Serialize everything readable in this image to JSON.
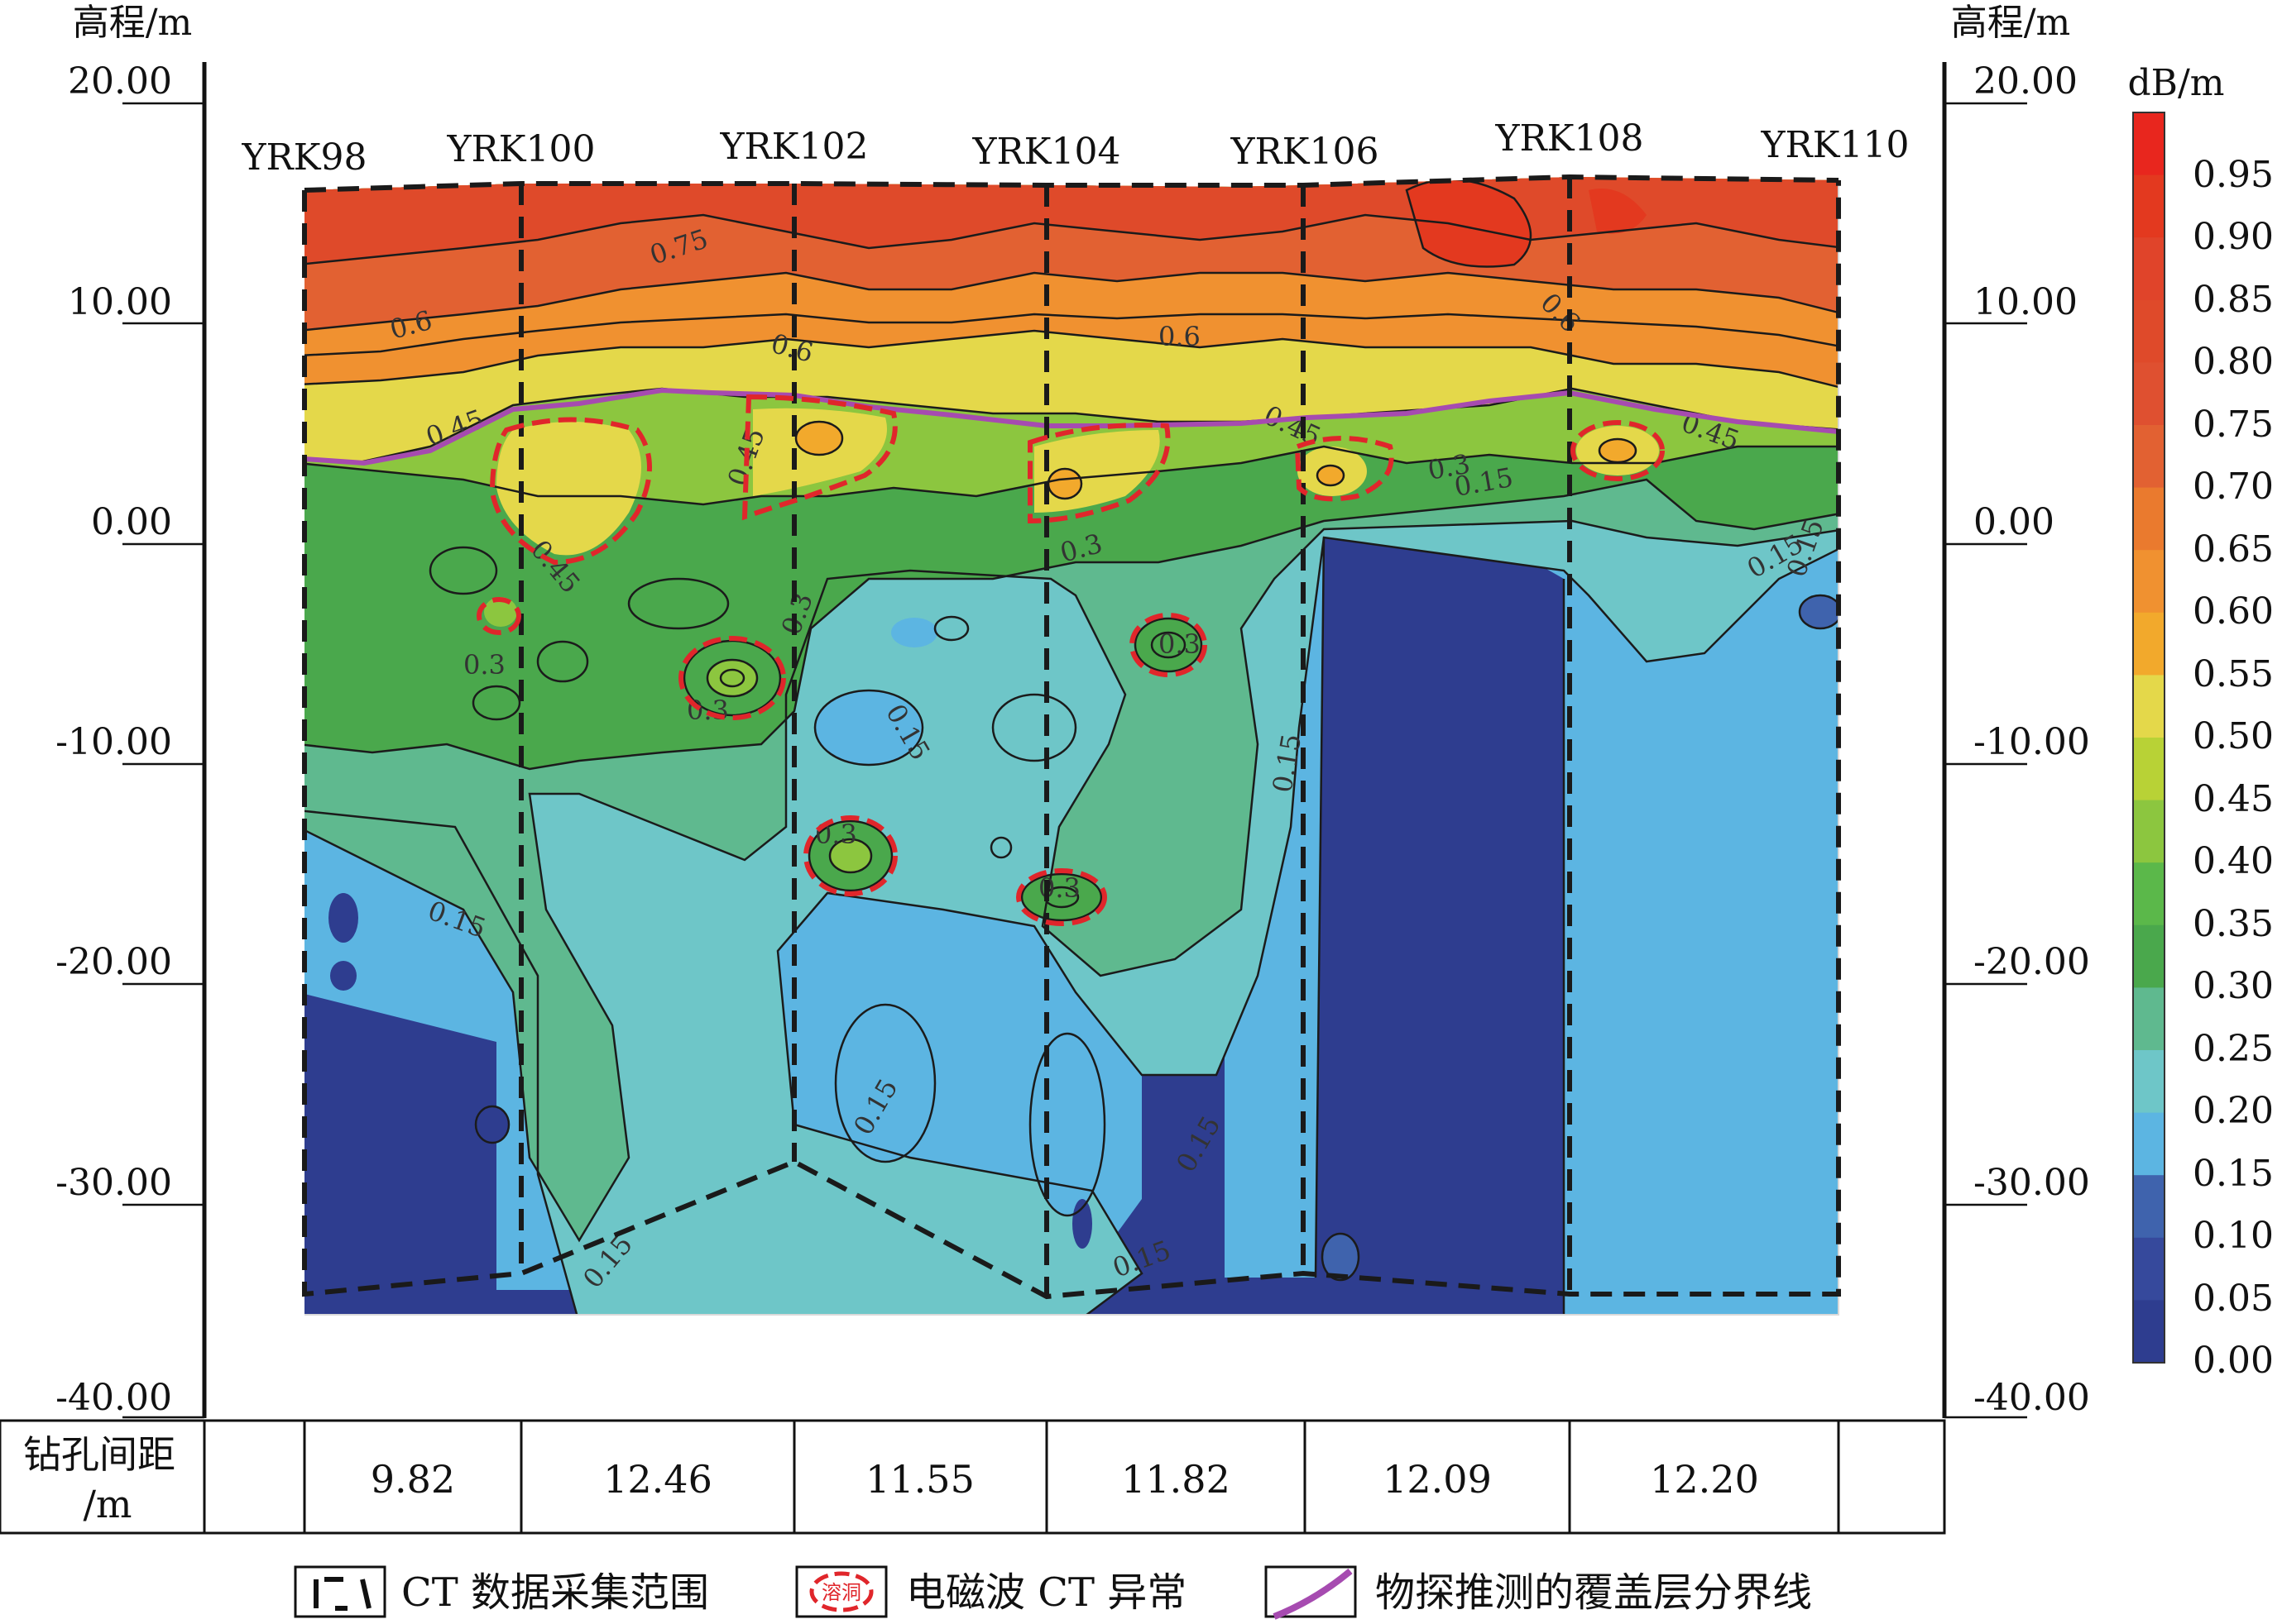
{
  "left_axis": {
    "unit": "高程/m",
    "ticks": [
      "20.00",
      "10.00",
      "0.00",
      "-10.00",
      "-20.00",
      "-30.00",
      "-40.00"
    ]
  },
  "right_axis": {
    "unit": "高程/m",
    "ticks": [
      "20.00",
      "10.00",
      "0.00",
      "-10.00",
      "-20.00",
      "-30.00",
      "-40.00"
    ]
  },
  "boreholes": [
    "YRK98",
    "YRK100",
    "YRK102",
    "YRK104",
    "YRK106",
    "YRK108",
    "YRK110"
  ],
  "spacing_table": {
    "header": "钻孔间距",
    "header_unit": "/m",
    "values": [
      "9.82",
      "12.46",
      "11.55",
      "11.82",
      "12.09",
      "12.20"
    ]
  },
  "colorbar": {
    "unit": "dB/m",
    "labels": [
      "0.95",
      "0.90",
      "0.85",
      "0.80",
      "0.75",
      "0.70",
      "0.65",
      "0.60",
      "0.55",
      "0.50",
      "0.45",
      "0.40",
      "0.35",
      "0.30",
      "0.25",
      "0.20",
      "0.15",
      "0.10",
      "0.05",
      "0.00"
    ],
    "colors": [
      "#e8261e",
      "#e3391f",
      "#e0442a",
      "#df4a2a",
      "#df5030",
      "#e26132",
      "#ea7a2e",
      "#f09130",
      "#f2a92c",
      "#e4d84a",
      "#b8d236",
      "#8cc63f",
      "#5bb84a",
      "#4aa84c",
      "#5fb98f",
      "#6ec6c8",
      "#5cb5e2",
      "#3f63ad",
      "#36499c",
      "#2e3d8f"
    ]
  },
  "contour_labels": [
    "0.75",
    "0.6",
    "0.6",
    "0.6",
    "0.6",
    "0.45",
    "0.45",
    "0.45",
    "0.45",
    "0.45",
    "0.3",
    "0.3",
    "0.3",
    "0.3",
    "0.3",
    "0.3",
    "0.3",
    "0.3",
    "0.15",
    "0.15",
    "0.15",
    "0.15",
    "0.15",
    "0.15",
    "0.15",
    "0.15",
    "0.15",
    "0.15"
  ],
  "legend": {
    "ct_range": "CT 数据采集范围",
    "anomaly": "电磁波 CT 异常",
    "anomaly_icon_text": "溶洞",
    "boundary": "物探推测的覆盖层分界线"
  },
  "colors": {
    "boundary_line": "#a64bb0",
    "anomaly_outline": "#e0262b",
    "ct_range_line": "#1a1a1a"
  }
}
